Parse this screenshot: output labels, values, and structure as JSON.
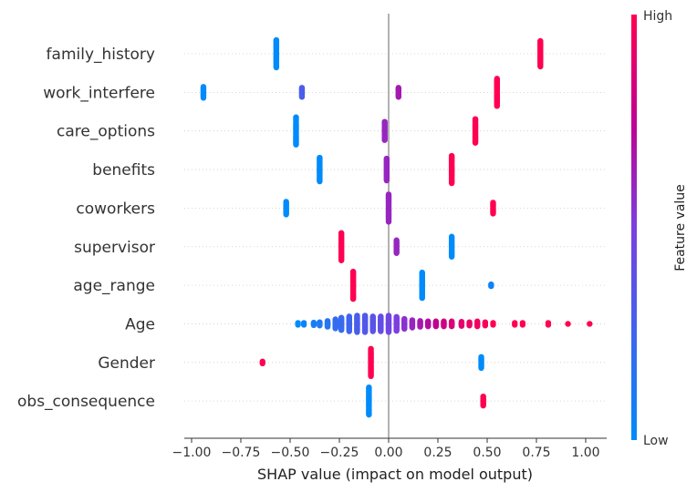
{
  "chart_data": {
    "type": "scatter",
    "subtype": "shap-beeswarm",
    "xlabel": "SHAP value (impact on model output)",
    "xlim": [
      -1.1,
      1.1
    ],
    "xticks": [
      {
        "value": -1.0,
        "label": "−1.00"
      },
      {
        "value": -0.75,
        "label": "−0.75"
      },
      {
        "value": -0.5,
        "label": "−0.50"
      },
      {
        "value": -0.25,
        "label": "−0.25"
      },
      {
        "value": 0.0,
        "label": "0.00"
      },
      {
        "value": 0.25,
        "label": "0.25"
      },
      {
        "value": 0.5,
        "label": "0.50"
      },
      {
        "value": 0.75,
        "label": "0.75"
      },
      {
        "value": 1.0,
        "label": "1.00"
      }
    ],
    "features": [
      "family_history",
      "work_interfere",
      "care_options",
      "benefits",
      "coworkers",
      "supervisor",
      "age_range",
      "Age",
      "Gender",
      "obs_consequence"
    ],
    "colorbar": {
      "label": "Feature value",
      "high": "High",
      "low": "Low",
      "high_color": "#ff0052",
      "low_color": "#008bfb"
    },
    "grid": true,
    "clusters": [
      {
        "feature": "family_history",
        "x": -0.57,
        "feature_value": 0.0,
        "count": 30,
        "spread": 0.0
      },
      {
        "feature": "family_history",
        "x": 0.77,
        "feature_value": 1.0,
        "count": 28,
        "spread": 0.0
      },
      {
        "feature": "work_interfere",
        "x": -0.94,
        "feature_value": 0.0,
        "count": 12,
        "spread": 0.0
      },
      {
        "feature": "work_interfere",
        "x": -0.44,
        "feature_value": 0.3,
        "count": 10,
        "spread": 0.0
      },
      {
        "feature": "work_interfere",
        "x": 0.05,
        "feature_value": 0.65,
        "count": 10,
        "spread": 0.0
      },
      {
        "feature": "work_interfere",
        "x": 0.55,
        "feature_value": 1.0,
        "count": 30,
        "spread": 0.0
      },
      {
        "feature": "care_options",
        "x": -0.47,
        "feature_value": 0.0,
        "count": 30,
        "spread": 0.0
      },
      {
        "feature": "care_options",
        "x": -0.02,
        "feature_value": 0.6,
        "count": 20,
        "spread": 0.0
      },
      {
        "feature": "care_options",
        "x": 0.44,
        "feature_value": 1.0,
        "count": 26,
        "spread": 0.0
      },
      {
        "feature": "benefits",
        "x": -0.35,
        "feature_value": 0.0,
        "count": 26,
        "spread": 0.0
      },
      {
        "feature": "benefits",
        "x": -0.01,
        "feature_value": 0.6,
        "count": 24,
        "spread": 0.0
      },
      {
        "feature": "benefits",
        "x": 0.32,
        "feature_value": 1.0,
        "count": 30,
        "spread": 0.0
      },
      {
        "feature": "coworkers",
        "x": -0.52,
        "feature_value": 0.0,
        "count": 14,
        "spread": 0.0
      },
      {
        "feature": "coworkers",
        "x": 0.0,
        "feature_value": 0.6,
        "count": 30,
        "spread": 0.0
      },
      {
        "feature": "coworkers",
        "x": 0.53,
        "feature_value": 1.0,
        "count": 12,
        "spread": 0.0
      },
      {
        "feature": "supervisor",
        "x": -0.24,
        "feature_value": 1.0,
        "count": 30,
        "spread": 0.0
      },
      {
        "feature": "supervisor",
        "x": 0.04,
        "feature_value": 0.6,
        "count": 14,
        "spread": 0.0
      },
      {
        "feature": "supervisor",
        "x": 0.32,
        "feature_value": 0.0,
        "count": 22,
        "spread": 0.0
      },
      {
        "feature": "age_range",
        "x": -0.18,
        "feature_value": 1.0,
        "count": 30,
        "spread": 0.0
      },
      {
        "feature": "age_range",
        "x": 0.17,
        "feature_value": 0.0,
        "count": 28,
        "spread": 0.0
      },
      {
        "feature": "age_range",
        "x": 0.52,
        "feature_value": 0.05,
        "count": 2,
        "spread": 0.0
      },
      {
        "feature": "Age",
        "x": -0.46,
        "feature_value": 0.0,
        "count": 2,
        "spread": 0.0
      },
      {
        "feature": "Age",
        "x": -0.43,
        "feature_value": 0.05,
        "count": 2,
        "spread": 0.0
      },
      {
        "feature": "Age",
        "x": -0.38,
        "feature_value": 0.1,
        "count": 4,
        "spread": 0.15
      },
      {
        "feature": "Age",
        "x": -0.35,
        "feature_value": 0.12,
        "count": 6,
        "spread": 0.2
      },
      {
        "feature": "Age",
        "x": -0.31,
        "feature_value": 0.15,
        "count": 10,
        "spread": 0.35
      },
      {
        "feature": "Age",
        "x": -0.27,
        "feature_value": 0.2,
        "count": 16,
        "spread": 0.55
      },
      {
        "feature": "Age",
        "x": -0.24,
        "feature_value": 0.22,
        "count": 20,
        "spread": 0.75
      },
      {
        "feature": "Age",
        "x": -0.2,
        "feature_value": 0.25,
        "count": 24,
        "spread": 0.9
      },
      {
        "feature": "Age",
        "x": -0.16,
        "feature_value": 0.3,
        "count": 26,
        "spread": 1.0
      },
      {
        "feature": "Age",
        "x": -0.12,
        "feature_value": 0.33,
        "count": 26,
        "spread": 1.0
      },
      {
        "feature": "Age",
        "x": -0.08,
        "feature_value": 0.36,
        "count": 24,
        "spread": 0.9
      },
      {
        "feature": "Age",
        "x": -0.04,
        "feature_value": 0.4,
        "count": 24,
        "spread": 0.9
      },
      {
        "feature": "Age",
        "x": 0.0,
        "feature_value": 0.45,
        "count": 26,
        "spread": 1.0
      },
      {
        "feature": "Age",
        "x": 0.04,
        "feature_value": 0.5,
        "count": 24,
        "spread": 0.85
      },
      {
        "feature": "Age",
        "x": 0.08,
        "feature_value": 0.55,
        "count": 18,
        "spread": 0.6
      },
      {
        "feature": "Age",
        "x": 0.12,
        "feature_value": 0.6,
        "count": 14,
        "spread": 0.45
      },
      {
        "feature": "Age",
        "x": 0.16,
        "feature_value": 0.65,
        "count": 10,
        "spread": 0.35
      },
      {
        "feature": "Age",
        "x": 0.2,
        "feature_value": 0.7,
        "count": 10,
        "spread": 0.3
      },
      {
        "feature": "Age",
        "x": 0.24,
        "feature_value": 0.75,
        "count": 8,
        "spread": 0.3
      },
      {
        "feature": "Age",
        "x": 0.28,
        "feature_value": 0.8,
        "count": 8,
        "spread": 0.3
      },
      {
        "feature": "Age",
        "x": 0.32,
        "feature_value": 0.85,
        "count": 8,
        "spread": 0.3
      },
      {
        "feature": "Age",
        "x": 0.37,
        "feature_value": 0.9,
        "count": 6,
        "spread": 0.25
      },
      {
        "feature": "Age",
        "x": 0.41,
        "feature_value": 0.92,
        "count": 4,
        "spread": 0.2
      },
      {
        "feature": "Age",
        "x": 0.45,
        "feature_value": 0.95,
        "count": 6,
        "spread": 0.3
      },
      {
        "feature": "Age",
        "x": 0.49,
        "feature_value": 0.97,
        "count": 4,
        "spread": 0.2
      },
      {
        "feature": "Age",
        "x": 0.53,
        "feature_value": 1.0,
        "count": 2,
        "spread": 0.0
      },
      {
        "feature": "Age",
        "x": 0.64,
        "feature_value": 1.0,
        "count": 2,
        "spread": 0.0
      },
      {
        "feature": "Age",
        "x": 0.68,
        "feature_value": 1.0,
        "count": 2,
        "spread": 0.0
      },
      {
        "feature": "Age",
        "x": 0.81,
        "feature_value": 1.0,
        "count": 2,
        "spread": 0.0
      },
      {
        "feature": "Age",
        "x": 0.91,
        "feature_value": 1.0,
        "count": 1,
        "spread": 0.0
      },
      {
        "feature": "Age",
        "x": 1.02,
        "feature_value": 1.0,
        "count": 1,
        "spread": 0.0
      },
      {
        "feature": "Gender",
        "x": -0.64,
        "feature_value": 1.0,
        "count": 2,
        "spread": 0.0
      },
      {
        "feature": "Gender",
        "x": -0.09,
        "feature_value": 1.0,
        "count": 30,
        "spread": 0.0
      },
      {
        "feature": "Gender",
        "x": 0.47,
        "feature_value": 0.0,
        "count": 12,
        "spread": 0.0
      },
      {
        "feature": "obs_consequence",
        "x": -0.1,
        "feature_value": 0.0,
        "count": 30,
        "spread": 0.0
      },
      {
        "feature": "obs_consequence",
        "x": 0.48,
        "feature_value": 1.0,
        "count": 10,
        "spread": 0.0
      }
    ]
  }
}
